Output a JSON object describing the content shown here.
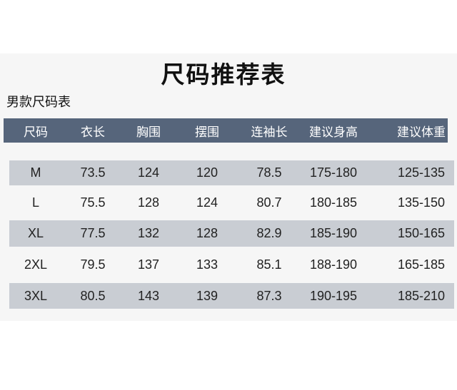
{
  "title": "尺码推荐表",
  "subtitle": "男款尺码表",
  "colors": {
    "header_bg": "#56657b",
    "shaded_row": "#c9cdd3"
  },
  "table": {
    "headers": [
      "尺码",
      "衣长",
      "胸围",
      "摆围",
      "连袖长",
      "建议身高",
      "建议体重"
    ],
    "rows": [
      [
        "M",
        "73.5",
        "124",
        "120",
        "78.5",
        "175-180",
        "125-135"
      ],
      [
        "L",
        "75.5",
        "128",
        "124",
        "80.7",
        "180-185",
        "135-150"
      ],
      [
        "XL",
        "77.5",
        "132",
        "128",
        "82.9",
        "185-190",
        "150-165"
      ],
      [
        "2XL",
        "79.5",
        "137",
        "133",
        "85.1",
        "188-190",
        "165-185"
      ],
      [
        "3XL",
        "80.5",
        "143",
        "139",
        "87.3",
        "190-195",
        "185-210"
      ]
    ]
  }
}
